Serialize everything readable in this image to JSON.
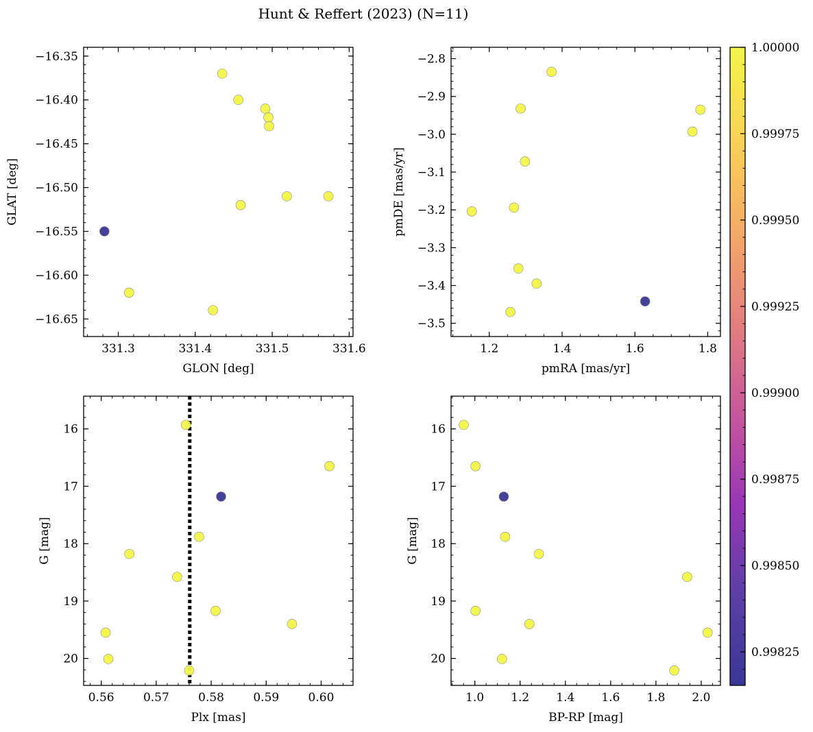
{
  "chart_data": {
    "title": "Hunt & Reffert (2023) (N=11)",
    "colormap": {
      "name": "plasma",
      "range": [
        0.998153,
        1.0
      ],
      "ticks": [
        0.99825,
        0.9985,
        0.99875,
        0.999,
        0.99925,
        0.9995,
        0.99975,
        1.0
      ],
      "tick_labels": [
        "0.99825",
        "0.99850",
        "0.99875",
        "0.99900",
        "0.99925",
        "0.99950",
        "0.99975",
        "1.00000"
      ],
      "stops": [
        "#3a3796",
        "#5b3fa6",
        "#9a36b6",
        "#c8589c",
        "#e3807d",
        "#f6ab66",
        "#f9d255",
        "#f2f548"
      ]
    },
    "colors": {
      "member": "#f2f548",
      "highlight": "#3a3796",
      "marker_edge": "#8c8c8c",
      "reference_line": "#000000"
    },
    "panels": [
      {
        "type": "scatter",
        "xlabel": "GLON [deg]",
        "ylabel": "GLAT [deg]",
        "xlim": [
          331.255,
          331.605
        ],
        "ylim": [
          -16.67,
          -16.34
        ],
        "x_inverted": false,
        "y_inverted": false,
        "xticks": [
          331.3,
          331.4,
          331.5,
          331.6
        ],
        "xtick_labels": [
          "331.3",
          "331.4",
          "331.5",
          "331.6"
        ],
        "yticks": [
          -16.35,
          -16.4,
          -16.45,
          -16.5,
          -16.55,
          -16.6,
          -16.65
        ],
        "ytick_labels": [
          "−16.35",
          "−16.40",
          "−16.45",
          "−16.50",
          "−16.55",
          "−16.60",
          "−16.65"
        ],
        "xminor": 0.02,
        "yminor": 0.01,
        "points": [
          {
            "x": 331.435,
            "y": -16.37,
            "c": 1.0
          },
          {
            "x": 331.456,
            "y": -16.4,
            "c": 1.0
          },
          {
            "x": 331.491,
            "y": -16.41,
            "c": 1.0
          },
          {
            "x": 331.495,
            "y": -16.42,
            "c": 1.0
          },
          {
            "x": 331.496,
            "y": -16.43,
            "c": 1.0
          },
          {
            "x": 331.519,
            "y": -16.51,
            "c": 1.0
          },
          {
            "x": 331.573,
            "y": -16.51,
            "c": 1.0
          },
          {
            "x": 331.459,
            "y": -16.52,
            "c": 1.0
          },
          {
            "x": 331.282,
            "y": -16.55,
            "c": 0.998153
          },
          {
            "x": 331.314,
            "y": -16.62,
            "c": 1.0
          },
          {
            "x": 331.423,
            "y": -16.64,
            "c": 1.0
          }
        ]
      },
      {
        "type": "scatter",
        "xlabel": "pmRA [mas/yr]",
        "ylabel": "pmDE [mas/yr]",
        "xlim": [
          1.095,
          1.835
        ],
        "ylim": [
          -3.535,
          -2.77
        ],
        "x_inverted": false,
        "y_inverted": false,
        "xticks": [
          1.2,
          1.4,
          1.6,
          1.8
        ],
        "xtick_labels": [
          "1.2",
          "1.4",
          "1.6",
          "1.8"
        ],
        "yticks": [
          -2.8,
          -2.9,
          -3.0,
          -3.1,
          -3.2,
          -3.3,
          -3.4,
          -3.5
        ],
        "ytick_labels": [
          "−2.8",
          "−2.9",
          "−3.0",
          "−3.1",
          "−3.2",
          "−3.3",
          "−3.4",
          "−3.5"
        ],
        "xminor": 0.05,
        "yminor": 0.02,
        "points": [
          {
            "x": 1.371,
            "y": -2.835,
            "c": 1.0
          },
          {
            "x": 1.286,
            "y": -2.932,
            "c": 1.0
          },
          {
            "x": 1.78,
            "y": -2.935,
            "c": 1.0
          },
          {
            "x": 1.758,
            "y": -2.993,
            "c": 1.0
          },
          {
            "x": 1.298,
            "y": -3.072,
            "c": 1.0
          },
          {
            "x": 1.268,
            "y": -3.194,
            "c": 1.0
          },
          {
            "x": 1.152,
            "y": -3.204,
            "c": 1.0
          },
          {
            "x": 1.28,
            "y": -3.355,
            "c": 1.0
          },
          {
            "x": 1.33,
            "y": -3.395,
            "c": 1.0
          },
          {
            "x": 1.628,
            "y": -3.442,
            "c": 0.998153
          },
          {
            "x": 1.258,
            "y": -3.47,
            "c": 1.0
          }
        ]
      },
      {
        "type": "scatter",
        "xlabel": "Plx [mas]",
        "ylabel": "G [mag]",
        "xlim": [
          0.5568,
          0.6058
        ],
        "ylim": [
          15.43,
          20.47
        ],
        "x_inverted": false,
        "y_inverted": true,
        "xticks": [
          0.56,
          0.57,
          0.58,
          0.59,
          0.6
        ],
        "xtick_labels": [
          "0.56",
          "0.57",
          "0.58",
          "0.59",
          "0.60"
        ],
        "yticks": [
          16,
          17,
          18,
          19,
          20
        ],
        "ytick_labels": [
          "16",
          "17",
          "18",
          "19",
          "20"
        ],
        "xminor": 0.002,
        "yminor": 0.2,
        "vline": {
          "x": 0.5761,
          "style": "dotted"
        },
        "points": [
          {
            "x": 0.5754,
            "y": 15.93,
            "c": 1.0
          },
          {
            "x": 0.6015,
            "y": 16.65,
            "c": 1.0
          },
          {
            "x": 0.5818,
            "y": 17.18,
            "c": 0.998153
          },
          {
            "x": 0.5778,
            "y": 17.88,
            "c": 1.0
          },
          {
            "x": 0.5651,
            "y": 18.18,
            "c": 1.0
          },
          {
            "x": 0.5738,
            "y": 18.58,
            "c": 1.0
          },
          {
            "x": 0.5808,
            "y": 19.17,
            "c": 1.0
          },
          {
            "x": 0.5947,
            "y": 19.4,
            "c": 1.0
          },
          {
            "x": 0.5608,
            "y": 19.55,
            "c": 1.0
          },
          {
            "x": 0.5613,
            "y": 20.01,
            "c": 1.0
          },
          {
            "x": 0.576,
            "y": 20.21,
            "c": 1.0
          }
        ]
      },
      {
        "type": "scatter",
        "xlabel": "BP-RP [mag]",
        "ylabel": "G [mag]",
        "xlim": [
          0.895,
          2.085
        ],
        "ylim": [
          15.43,
          20.47
        ],
        "x_inverted": false,
        "y_inverted": true,
        "xticks": [
          1.0,
          1.2,
          1.4,
          1.6,
          1.8,
          2.0
        ],
        "xtick_labels": [
          "1.0",
          "1.2",
          "1.4",
          "1.6",
          "1.8",
          "2.0"
        ],
        "yticks": [
          16,
          17,
          18,
          19,
          20
        ],
        "ytick_labels": [
          "16",
          "17",
          "18",
          "19",
          "20"
        ],
        "xminor": 0.05,
        "yminor": 0.2,
        "points": [
          {
            "x": 0.951,
            "y": 15.93,
            "c": 1.0
          },
          {
            "x": 1.003,
            "y": 16.65,
            "c": 1.0
          },
          {
            "x": 1.128,
            "y": 17.18,
            "c": 0.998153
          },
          {
            "x": 1.134,
            "y": 17.88,
            "c": 1.0
          },
          {
            "x": 1.283,
            "y": 18.18,
            "c": 1.0
          },
          {
            "x": 1.938,
            "y": 18.58,
            "c": 1.0
          },
          {
            "x": 1.003,
            "y": 19.17,
            "c": 1.0
          },
          {
            "x": 1.241,
            "y": 19.4,
            "c": 1.0
          },
          {
            "x": 2.028,
            "y": 19.55,
            "c": 1.0
          },
          {
            "x": 1.12,
            "y": 20.01,
            "c": 1.0
          },
          {
            "x": 1.881,
            "y": 20.21,
            "c": 1.0
          }
        ]
      }
    ]
  }
}
